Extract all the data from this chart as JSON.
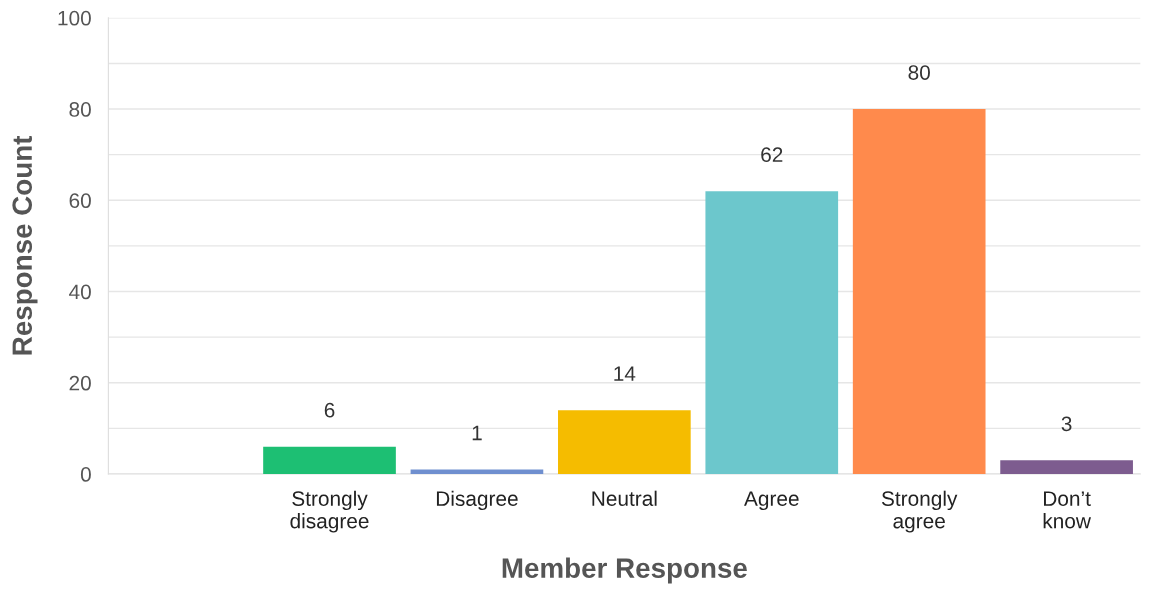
{
  "chart_data": {
    "type": "bar",
    "xlabel": "Member Response",
    "ylabel": "Response Count",
    "categories": [
      null,
      "Strongly\ndisagree",
      "Disagree",
      "Neutral",
      "Agree",
      "Strongly\nagree",
      "Don’t\nknow"
    ],
    "values": [
      null,
      6,
      1,
      14,
      62,
      80,
      3
    ],
    "colors": [
      "#cccccc",
      "#1dbf73",
      "#6f8fcf",
      "#f5bc00",
      "#6cc7cc",
      "#ff8a4c",
      "#7d5c8f"
    ],
    "ylim": [
      0,
      100
    ],
    "yticks": [
      0,
      {
        "value": 10,
        "label": null
      },
      20,
      {
        "value": 30,
        "label": null
      },
      40,
      {
        "value": 50,
        "label": null
      },
      60,
      {
        "value": 70,
        "label": null
      },
      80,
      {
        "value": 90,
        "label": null
      },
      100
    ],
    "grid": "y",
    "data_labels": true
  }
}
